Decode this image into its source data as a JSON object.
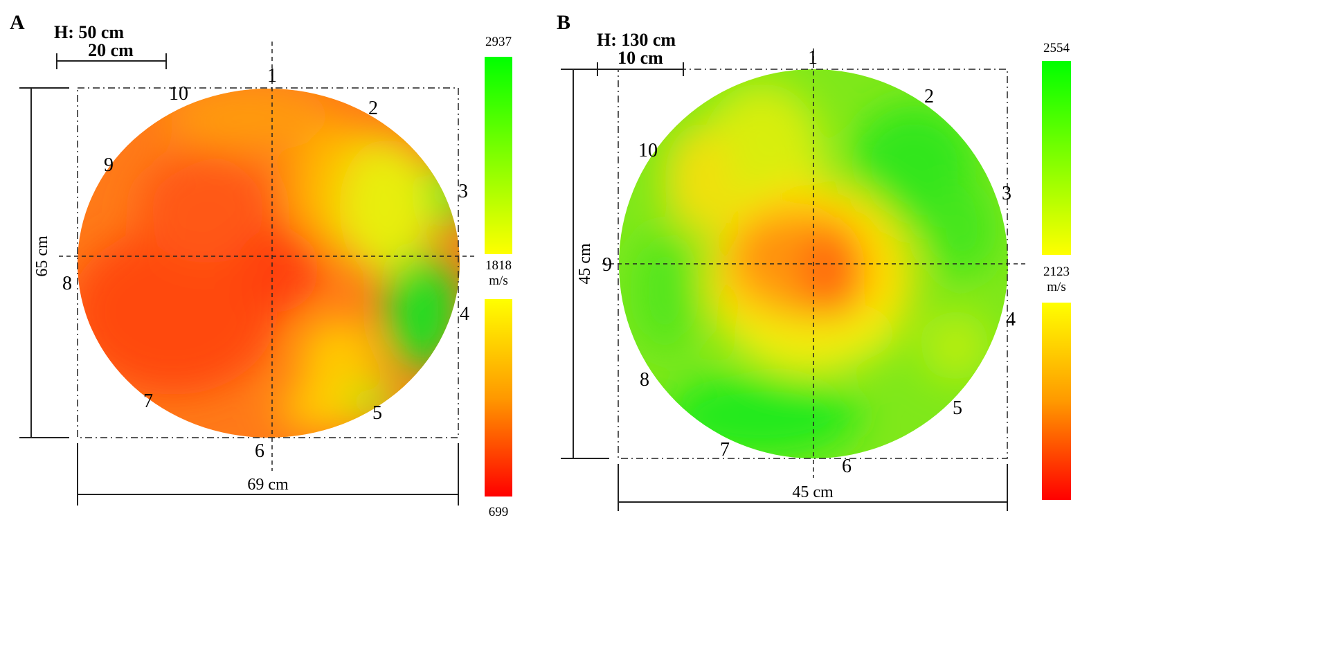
{
  "chart_data": [
    {
      "type": "heatmap",
      "panel_label": "A",
      "height_label": "H: 50 cm",
      "scale_bar_label": "20 cm",
      "width_label": "69 cm",
      "depth_label": "65 cm",
      "sensors": [
        "1",
        "2",
        "3",
        "4",
        "5",
        "6",
        "7",
        "8",
        "9",
        "10"
      ],
      "colorbar": {
        "max": "2937",
        "mid": "1818",
        "min": "699",
        "unit": "m/s",
        "colors": {
          "high": "#00ff00",
          "mid": "#ffff00",
          "orange": "#ff9900",
          "low": "#ff0000"
        }
      },
      "description_colors": {
        "dominant": "#ff6a10",
        "secondary": "#ffb000",
        "healthy": "#22dd22"
      }
    },
    {
      "type": "heatmap",
      "panel_label": "B",
      "height_label": "H: 130 cm",
      "scale_bar_label": "10 cm",
      "width_label": "45 cm",
      "depth_label": "45 cm",
      "sensors": [
        "1",
        "2",
        "3",
        "4",
        "5",
        "6",
        "7",
        "8",
        "9",
        "10"
      ],
      "colorbar": {
        "max": "2554",
        "mid": "2123",
        "unit": "m/s",
        "colors": {
          "high": "#00ff00",
          "mid": "#ffff00",
          "orange": "#ff9900",
          "low": "#ff0000"
        }
      }
    }
  ]
}
